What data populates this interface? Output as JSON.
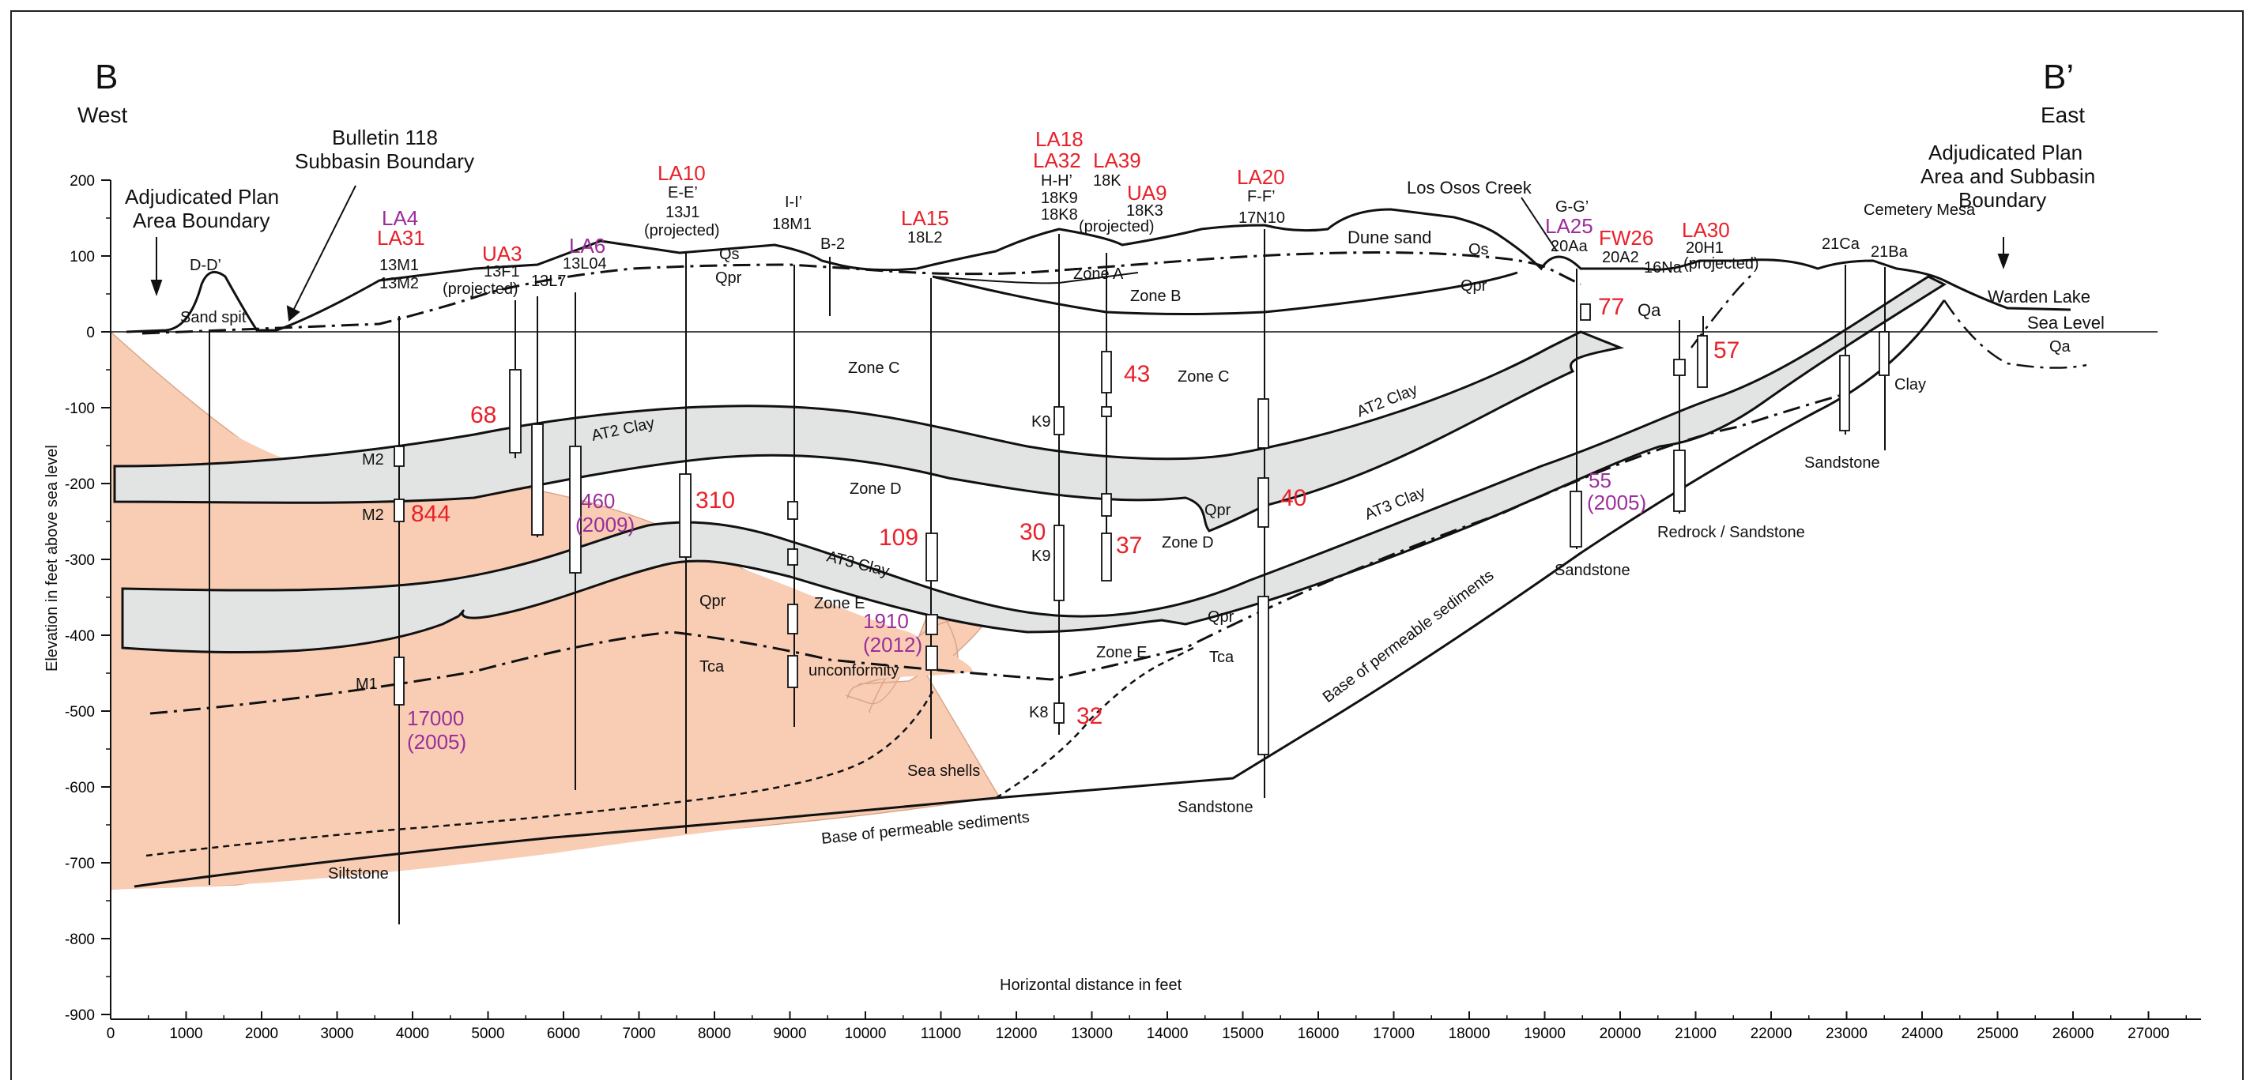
{
  "header": {
    "left_letter": "B",
    "left_dir": "West",
    "right_letter": "B’",
    "right_dir": "East"
  },
  "axes": {
    "ylabel": "Elevation in feet above sea level",
    "xlabel": "Horizontal distance in feet",
    "sea_level": "Sea Level",
    "y_ticks": [
      "200",
      "100",
      "0",
      "-100",
      "-200",
      "-300",
      "-400",
      "-500",
      "-600",
      "-700",
      "-800",
      "-900"
    ],
    "x_ticks": [
      "0",
      "1000",
      "2000",
      "3000",
      "4000",
      "5000",
      "6000",
      "7000",
      "8000",
      "9000",
      "10000",
      "11000",
      "12000",
      "13000",
      "14000",
      "15000",
      "16000",
      "17000",
      "18000",
      "19000",
      "20000",
      "21000",
      "22000",
      "23000",
      "24000",
      "25000",
      "26000",
      "27000"
    ]
  },
  "callouts": {
    "adj_boundary_left": [
      "Adjudicated Plan",
      "Area Boundary"
    ],
    "bulletin_118": [
      "Bulletin 118",
      "Subbasin Boundary"
    ],
    "adj_boundary_right": [
      "Adjudicated Plan",
      "Area and Subbasin",
      "Boundary"
    ],
    "los_osos_creek": "Los Osos Creek",
    "warden_lake": "Warden Lake",
    "cemetery_mesa": "Cemetery Mesa"
  },
  "wells": {
    "dd": "D-D’",
    "la4": "LA4",
    "la31": "LA31",
    "w13m1": "13M1",
    "w13m2": "13M2",
    "ua3": "UA3",
    "w13f1": "13F1",
    "proj_ua3": "(projected)",
    "w13l7": "13L7",
    "la6": "LA6",
    "w13l04": "13L04",
    "la10": "LA10",
    "ee": "E-E’",
    "w13j1": "13J1",
    "proj_la10": "(projected)",
    "ii": "I-I’",
    "w18m1": "18M1",
    "b2": "B-2",
    "la15": "LA15",
    "w18l2": "18L2",
    "la18": "LA18",
    "la32": "LA32",
    "hh": "H-H’",
    "w18k9": "18K9",
    "w18k8": "18K8",
    "la39": "LA39",
    "w18k": "18K",
    "ua9": "UA9",
    "w18k3": "18K3",
    "proj_ua9": "(projected)",
    "la20": "LA20",
    "ff": "F-F’",
    "w17n10": "17N10",
    "gg": "G-G’",
    "la25": "LA25",
    "w20aa": "20Aa",
    "fw26": "FW26",
    "w20a2": "20A2",
    "w16na": "16Na",
    "la30": "LA30",
    "w20h1": "20H1",
    "proj_la30": "(projected)",
    "w21ca": "21Ca",
    "w21ba": "21Ba"
  },
  "units": {
    "sand_spit": "Sand spit",
    "dune_sand": "Dune sand",
    "qs1": "Qs",
    "qs2": "Qs",
    "qpr1": "Qpr",
    "qpr2": "Qpr",
    "qpr3": "Qpr",
    "qpr4": "Qpr",
    "qpr5": "Qpr",
    "qa1": "Qa",
    "qa2": "Qa",
    "zone_a": "Zone A",
    "zone_b": "Zone B",
    "zone_c1": "Zone C",
    "zone_c2": "Zone C",
    "zone_d1": "Zone D",
    "zone_d2": "Zone D",
    "zone_e1": "Zone E",
    "zone_e2": "Zone E",
    "at2_1": "AT2 Clay",
    "at2_2": "AT2 Clay",
    "at3_1": "AT3 Clay",
    "at3_2": "AT3 Clay",
    "tca1": "Tca",
    "tca2": "Tca",
    "unconformity": "unconformity",
    "sea_shells": "Sea shells",
    "siltstone": "Siltstone",
    "sandstone1": "Sandstone",
    "sandstone2": "Sandstone",
    "sandstone3": "Sandstone",
    "redrock": "Redrock / Sandstone",
    "clay": "Clay",
    "base1": "Base of permeable sediments",
    "base2": "Base of permeable sediments",
    "m2a": "M2",
    "m2b": "M2",
    "m1": "M1",
    "k9a": "K9",
    "k9b": "K9",
    "k8": "K8"
  },
  "values": {
    "v68": "68",
    "v844": "844",
    "v460": "460",
    "v2009": "(2009)",
    "v310": "310",
    "v109": "109",
    "v1910": "1910",
    "v2012": "(2012)",
    "v30": "30",
    "v37": "37",
    "v43": "43",
    "v32": "32",
    "v40": "40",
    "v77": "77",
    "v57": "57",
    "v55": "55",
    "v2005b": "(2005)",
    "v17000": "17000",
    "v2005a": "(2005)"
  },
  "colors": {
    "red": "#e8212a",
    "purple": "#9b2e9b",
    "salmon": "#f8cdb4",
    "clay_gray": "#e2e4e4",
    "line": "#111111"
  }
}
